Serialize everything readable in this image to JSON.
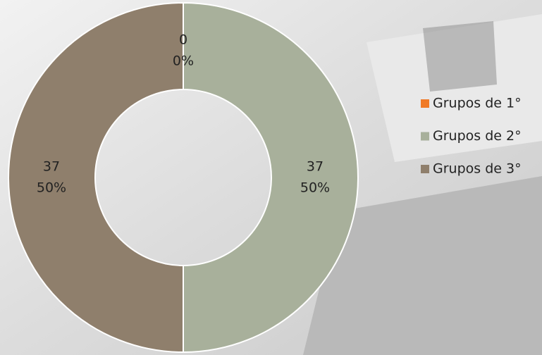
{
  "chart_data": {
    "type": "donut",
    "categories": [
      "Grupos de 1°",
      "Grupos de 2°",
      "Grupos de 3°"
    ],
    "values": [
      0,
      37,
      37
    ],
    "percent_labels": [
      "0%",
      "50%",
      "50%"
    ],
    "colors": [
      "#f07a26",
      "#a8b09b",
      "#8f7f6c"
    ],
    "legend": "right"
  }
}
